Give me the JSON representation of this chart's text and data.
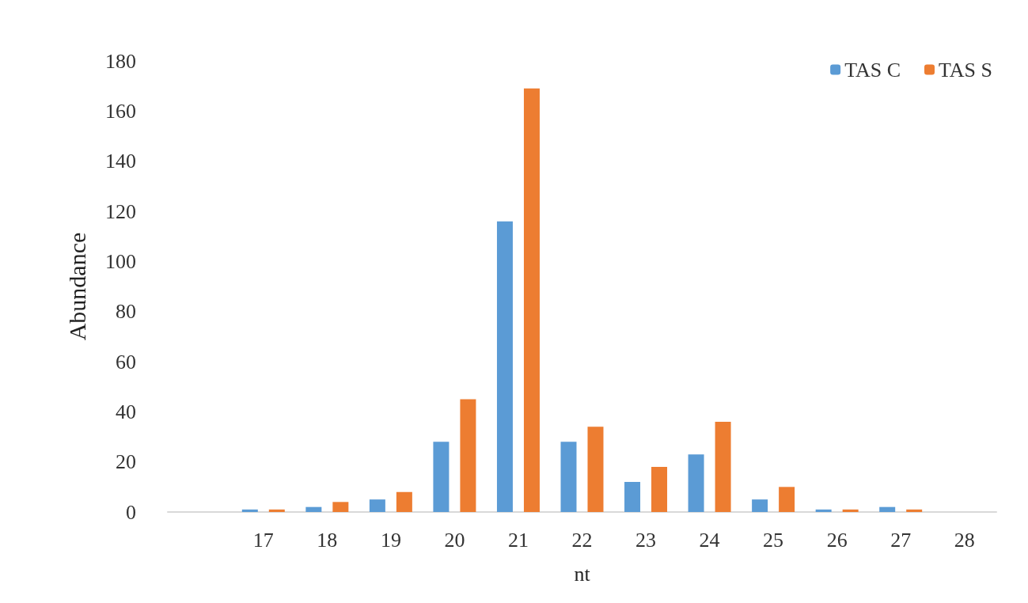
{
  "chart_data": {
    "type": "bar",
    "xlabel": "nt",
    "ylabel": "Abundance",
    "categories": [
      null,
      "17",
      "18",
      "19",
      "20",
      "21",
      "22",
      "23",
      "24",
      "25",
      "26",
      "27",
      "28"
    ],
    "series": [
      {
        "name": "TAS C",
        "color": "#5b9bd5",
        "values": [
          null,
          1,
          2,
          5,
          28,
          116,
          28,
          12,
          23,
          5,
          1,
          2,
          0
        ]
      },
      {
        "name": "TAS S",
        "color": "#ed7d31",
        "values": [
          null,
          1,
          4,
          8,
          45,
          169,
          34,
          18,
          36,
          10,
          1,
          1,
          0
        ]
      }
    ],
    "ylim": [
      0,
      180
    ],
    "yticks": [
      0,
      20,
      40,
      60,
      80,
      100,
      120,
      140,
      160,
      180
    ],
    "grid": false,
    "legend": "top right"
  }
}
